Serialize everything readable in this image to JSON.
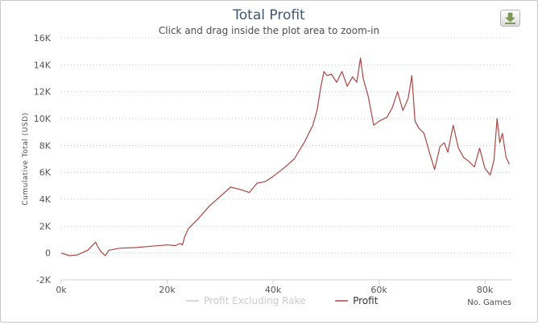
{
  "header": {
    "title": "Total Profit",
    "subtitle": "Click and drag inside the plot area to zoom-in"
  },
  "toolbar": {
    "export_icon": "download-icon"
  },
  "chart_data": {
    "type": "line",
    "title": "Total Profit",
    "subtitle": "Click and drag inside the plot area to zoom-in",
    "xlabel": "No. Games",
    "ylabel": "Cumulative Total (USD)",
    "xlim": [
      0,
      85000
    ],
    "ylim": [
      -2000,
      16000
    ],
    "x_ticks": [
      "0k",
      "20k",
      "40k",
      "60k",
      "80k"
    ],
    "y_ticks": [
      "-2K",
      "0",
      "2K",
      "4K",
      "6K",
      "8K",
      "10K",
      "12K",
      "14K",
      "16K"
    ],
    "grid": "horizontal dotted",
    "legend": {
      "placement": "bottom-center"
    },
    "series": [
      {
        "name": "Profit Excluding Rake",
        "color": "#cccccc",
        "visible": false,
        "x": [],
        "y": []
      },
      {
        "name": "Profit",
        "color": "#aa4643",
        "visible": true,
        "x": [
          0,
          1500,
          3000,
          5000,
          6500,
          7000,
          7500,
          8300,
          9000,
          11000,
          14000,
          17000,
          20000,
          21500,
          22500,
          22900,
          23300,
          24000,
          26000,
          28000,
          30000,
          32000,
          34000,
          35500,
          37000,
          38500,
          40000,
          42000,
          44000,
          46000,
          47500,
          48300,
          49000,
          49600,
          50200,
          51000,
          52000,
          53000,
          54000,
          55000,
          55800,
          56500,
          57000,
          58000,
          59000,
          60000,
          61500,
          62500,
          63500,
          64500,
          65500,
          66200,
          66800,
          67500,
          68500,
          69500,
          70500,
          71500,
          72300,
          73000,
          74000,
          75000,
          76000,
          77000,
          78000,
          79000,
          80000,
          81000,
          81700,
          82300,
          82800,
          83300,
          84000,
          84600
        ],
        "y": [
          0,
          -200,
          -150,
          200,
          800,
          400,
          100,
          -200,
          200,
          350,
          400,
          500,
          600,
          550,
          700,
          600,
          1200,
          1800,
          2600,
          3500,
          4200,
          4900,
          4700,
          4500,
          5200,
          5300,
          5700,
          6300,
          7000,
          8300,
          9500,
          10600,
          12300,
          13500,
          13200,
          13300,
          12700,
          13500,
          12400,
          13100,
          12700,
          14500,
          13000,
          11600,
          9500,
          9800,
          10100,
          10800,
          12000,
          10600,
          11500,
          13200,
          9800,
          9300,
          8900,
          7500,
          6200,
          7900,
          8200,
          7500,
          9500,
          7800,
          7100,
          6800,
          6400,
          7800,
          6300,
          5800,
          6900,
          10000,
          8200,
          8900,
          7100,
          6600
        ]
      }
    ]
  }
}
